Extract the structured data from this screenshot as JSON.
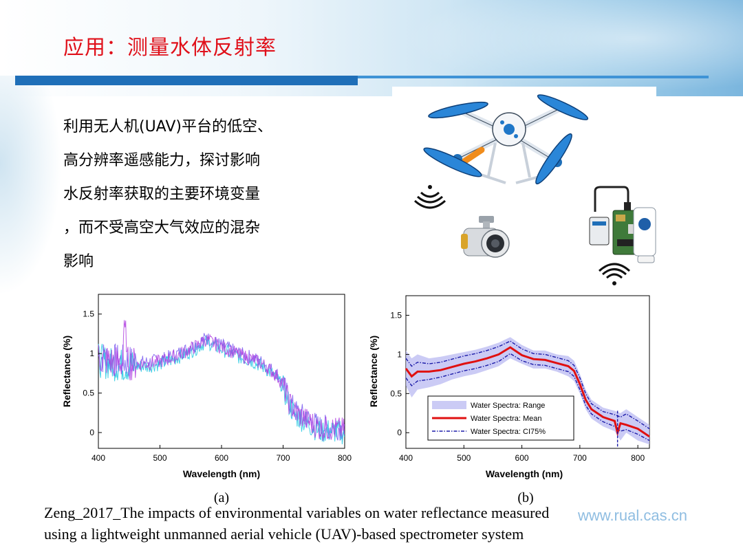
{
  "slide": {
    "title": "应用：测量水体反射率",
    "bullet_lines": [
      "利用无人机(UAV)平台的低空、",
      "高分辨率遥感能力，探讨影响",
      "水反射率获取的主要环境变量",
      "，而不受高空大气效应的混杂",
      "影响"
    ],
    "caption_lines": [
      "Zeng_2017_The impacts of environmental variables on water reflectance measured",
      "using a lightweight unmanned aerial vehicle (UAV)-based spectrometer system"
    ],
    "watermark": "www.rual.cas.cn",
    "colors": {
      "title": "#e0101a",
      "bar": "#1f6fb8",
      "accent": "#3f93d6"
    },
    "icons": [
      "drone-icon",
      "camera-gimbal-icon",
      "spectrometer-device-icon",
      "signal-wave-icon"
    ]
  },
  "chart_data": [
    {
      "type": "line",
      "panel_label": "(a)",
      "xlabel": "Wavelength (nm)",
      "ylabel": "Reflectance (%)",
      "xlim": [
        400,
        800
      ],
      "ylim": [
        -0.2,
        1.75
      ],
      "xticks": [
        "400",
        "500",
        "600",
        "700",
        "800"
      ],
      "yticks": [
        "0",
        "0.5",
        "1",
        "1.5"
      ],
      "grid": false,
      "series_note_colors": [
        "#7a5cf0",
        "#22c8e0",
        "#b040e0"
      ],
      "envelope": {
        "x": [
          400,
          420,
          440,
          460,
          480,
          500,
          520,
          540,
          560,
          575,
          590,
          610,
          630,
          650,
          670,
          690,
          700,
          710,
          720,
          740,
          760,
          780,
          800
        ],
        "y": [
          0.95,
          0.9,
          0.88,
          0.87,
          0.87,
          0.9,
          0.95,
          1.02,
          1.1,
          1.18,
          1.12,
          1.05,
          0.98,
          0.93,
          0.85,
          0.72,
          0.6,
          0.38,
          0.25,
          0.15,
          0.05,
          0.05,
          0.03
        ]
      }
    },
    {
      "type": "line",
      "panel_label": "(b)",
      "xlabel": "Wavelength (nm)",
      "ylabel": "Reflectance (%)",
      "xlim": [
        400,
        820
      ],
      "ylim": [
        -0.2,
        1.75
      ],
      "xticks": [
        "400",
        "500",
        "600",
        "700",
        "800"
      ],
      "yticks": [
        "0",
        "0.5",
        "1",
        "1.5"
      ],
      "grid": false,
      "legend_position": "lower-right",
      "series": [
        {
          "name": "Water Spectra: Range",
          "color": "#b9b9f2",
          "x": [
            400,
            410,
            420,
            440,
            460,
            480,
            500,
            520,
            540,
            560,
            580,
            600,
            620,
            640,
            660,
            680,
            690,
            700,
            710,
            720,
            740,
            760,
            770,
            780,
            800,
            820
          ],
          "upper": [
            1.05,
            0.95,
            1.0,
            0.95,
            0.97,
            1.0,
            1.03,
            1.06,
            1.1,
            1.15,
            1.22,
            1.12,
            1.05,
            1.05,
            1.0,
            0.98,
            0.92,
            0.75,
            0.55,
            0.42,
            0.32,
            0.28,
            0.25,
            0.3,
            0.2,
            0.1
          ],
          "lower": [
            0.6,
            0.45,
            0.55,
            0.58,
            0.62,
            0.68,
            0.72,
            0.75,
            0.8,
            0.85,
            0.95,
            0.88,
            0.82,
            0.82,
            0.78,
            0.72,
            0.66,
            0.5,
            0.3,
            0.18,
            0.08,
            0.02,
            -0.1,
            0.0,
            -0.1,
            -0.15
          ]
        },
        {
          "name": "Water Spectra: Mean",
          "color": "#e01010",
          "x": [
            400,
            410,
            420,
            440,
            460,
            480,
            500,
            520,
            540,
            560,
            580,
            600,
            620,
            640,
            660,
            680,
            690,
            700,
            710,
            720,
            740,
            760,
            765,
            770,
            780,
            800,
            820
          ],
          "y": [
            0.82,
            0.72,
            0.78,
            0.78,
            0.8,
            0.84,
            0.88,
            0.91,
            0.95,
            1.0,
            1.09,
            0.99,
            0.94,
            0.93,
            0.89,
            0.85,
            0.79,
            0.62,
            0.42,
            0.3,
            0.2,
            0.15,
            0.0,
            0.12,
            0.1,
            0.05,
            -0.05
          ]
        },
        {
          "name": "Water Spectra: CI75%",
          "color": "#1a1aa8",
          "x": [
            400,
            410,
            420,
            440,
            460,
            480,
            500,
            520,
            540,
            560,
            580,
            600,
            620,
            640,
            660,
            680,
            690,
            700,
            710,
            720,
            740,
            760,
            770,
            780,
            800,
            820
          ],
          "upper": [
            0.95,
            0.85,
            0.9,
            0.88,
            0.9,
            0.94,
            0.98,
            1.01,
            1.05,
            1.1,
            1.17,
            1.07,
            1.01,
            1.0,
            0.96,
            0.92,
            0.86,
            0.7,
            0.5,
            0.37,
            0.27,
            0.23,
            0.2,
            0.24,
            0.15,
            0.05
          ],
          "lower": [
            0.7,
            0.6,
            0.66,
            0.68,
            0.71,
            0.75,
            0.79,
            0.82,
            0.86,
            0.91,
            1.01,
            0.92,
            0.87,
            0.86,
            0.82,
            0.78,
            0.72,
            0.55,
            0.35,
            0.24,
            0.14,
            0.08,
            0.02,
            0.04,
            -0.02,
            -0.1
          ]
        }
      ]
    }
  ]
}
